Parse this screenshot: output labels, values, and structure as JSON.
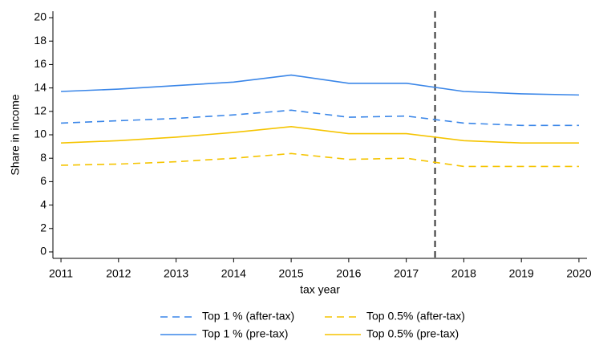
{
  "chart_data": {
    "type": "line",
    "x_label": "tax year",
    "y_label": "Share in income",
    "x": [
      2011,
      2012,
      2013,
      2014,
      2015,
      2016,
      2017,
      2018,
      2019,
      2020
    ],
    "series": [
      {
        "name": "Top 1 % (after-tax)",
        "color": "#3a86e8",
        "dashed": true,
        "values": [
          11.0,
          11.2,
          11.4,
          11.7,
          12.1,
          11.5,
          11.6,
          11.0,
          10.8,
          10.8
        ]
      },
      {
        "name": "Top 0.5% (after-tax)",
        "color": "#f5c400",
        "dashed": true,
        "values": [
          7.4,
          7.5,
          7.7,
          8.0,
          8.4,
          7.9,
          8.0,
          7.3,
          7.3,
          7.3
        ]
      },
      {
        "name": "Top 1 % (pre-tax)",
        "color": "#3a86e8",
        "dashed": false,
        "values": [
          13.7,
          13.9,
          14.2,
          14.5,
          15.1,
          14.4,
          14.4,
          13.7,
          13.5,
          13.4
        ]
      },
      {
        "name": "Top 0.5% (pre-tax)",
        "color": "#f5c400",
        "dashed": false,
        "values": [
          9.3,
          9.5,
          9.8,
          10.2,
          10.7,
          10.1,
          10.1,
          9.5,
          9.3,
          9.3
        ]
      }
    ],
    "vline": 2017.5,
    "xlim": [
      2010.86,
      2020.14
    ],
    "xticks": [
      2011,
      2012,
      2013,
      2014,
      2015,
      2016,
      2017,
      2018,
      2019,
      2020
    ],
    "ylim": [
      -0.55,
      20.55
    ],
    "yticks": [
      0,
      2,
      4,
      6,
      8,
      10,
      12,
      14,
      16,
      18,
      20
    ],
    "grid": false,
    "legend": "bottom"
  }
}
